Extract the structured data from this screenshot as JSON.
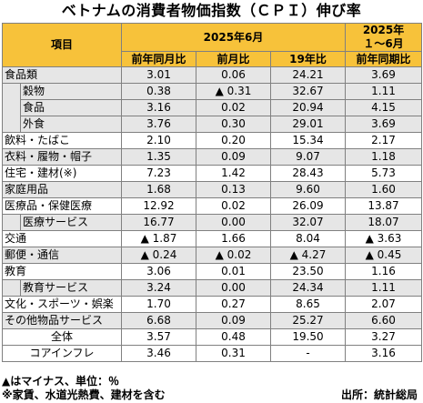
{
  "title": "ベトナムの消費者物価指数（ＣＰＩ）伸び率",
  "header": {
    "item_label": "項目",
    "period_2025_6": "2025年6月",
    "period_ytd_line1": "2025年",
    "period_ytd_line2": "１～6月",
    "col_yoy": "前年同月比",
    "col_mom": "前月比",
    "col_vs2019": "19年比",
    "col_ytd": "前年同期比"
  },
  "rows": [
    {
      "label": "食品類",
      "level": 0,
      "yoy": "3.01",
      "mom": "0.06",
      "vs19": "24.21",
      "ytd": "3.69"
    },
    {
      "label": "穀物",
      "level": 1,
      "yoy": "0.38",
      "mom": "▲ 0.31",
      "vs19": "32.67",
      "ytd": "1.11"
    },
    {
      "label": "食品",
      "level": 1,
      "yoy": "3.16",
      "mom": "0.02",
      "vs19": "20.94",
      "ytd": "4.15"
    },
    {
      "label": "外食",
      "level": 1,
      "yoy": "3.76",
      "mom": "0.30",
      "vs19": "29.01",
      "ytd": "3.69"
    },
    {
      "label": "飲料・たばこ",
      "level": 0,
      "yoy": "2.10",
      "mom": "0.20",
      "vs19": "15.34",
      "ytd": "2.17"
    },
    {
      "label": "衣料・履物・帽子",
      "level": 0,
      "yoy": "1.35",
      "mom": "0.09",
      "vs19": "9.07",
      "ytd": "1.18"
    },
    {
      "label": "住宅・建材(※)",
      "level": 0,
      "yoy": "7.23",
      "mom": "1.42",
      "vs19": "28.43",
      "ytd": "5.73"
    },
    {
      "label": "家庭用品",
      "level": 0,
      "yoy": "1.68",
      "mom": "0.13",
      "vs19": "9.60",
      "ytd": "1.60"
    },
    {
      "label": "医療品・保健医療",
      "level": 0,
      "yoy": "12.92",
      "mom": "0.02",
      "vs19": "26.09",
      "ytd": "13.87"
    },
    {
      "label": "医療サービス",
      "level": 1,
      "yoy": "16.77",
      "mom": "0.00",
      "vs19": "32.07",
      "ytd": "18.07"
    },
    {
      "label": "交通",
      "level": 0,
      "yoy": "▲ 1.87",
      "mom": "1.66",
      "vs19": "8.04",
      "ytd": "▲ 3.63"
    },
    {
      "label": "郵便・通信",
      "level": 0,
      "yoy": "▲ 0.24",
      "mom": "▲ 0.02",
      "vs19": "▲ 4.27",
      "ytd": "▲ 0.45"
    },
    {
      "label": "教育",
      "level": 0,
      "yoy": "3.06",
      "mom": "0.01",
      "vs19": "23.50",
      "ytd": "1.16"
    },
    {
      "label": "教育サービス",
      "level": 1,
      "yoy": "3.24",
      "mom": "0.00",
      "vs19": "24.34",
      "ytd": "1.11"
    },
    {
      "label": "文化・スポーツ・娯楽",
      "level": 0,
      "yoy": "1.70",
      "mom": "0.27",
      "vs19": "8.65",
      "ytd": "2.07"
    },
    {
      "label": "その他物品サービス",
      "level": 0,
      "yoy": "6.68",
      "mom": "0.09",
      "vs19": "25.27",
      "ytd": "6.60"
    }
  ],
  "summary": [
    {
      "label": "全体",
      "yoy": "3.57",
      "mom": "0.48",
      "vs19": "19.50",
      "ytd": "3.27"
    },
    {
      "label": "コアインフレ",
      "yoy": "3.46",
      "mom": "0.31",
      "vs19": "-",
      "ytd": "3.16"
    }
  ],
  "notes": {
    "line1": "▲はマイナス、単位：％",
    "line2": "※家賃、水道光熱費、建材を含む",
    "source": "出所：統計総局"
  }
}
